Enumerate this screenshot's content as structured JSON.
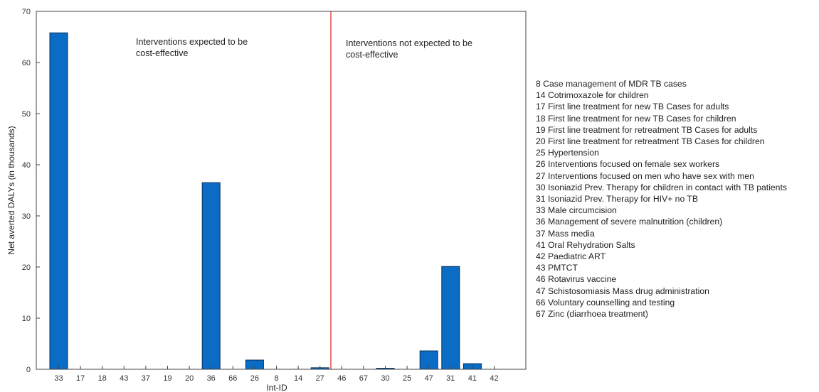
{
  "chart_data": {
    "type": "bar",
    "xlabel": "Int-ID",
    "ylabel": "Net averted DALYs (in thousands)",
    "ylim": [
      0,
      70
    ],
    "yticks": [
      0,
      10,
      20,
      30,
      40,
      50,
      60,
      70
    ],
    "grid": false,
    "categories": [
      "33",
      "17",
      "18",
      "43",
      "37",
      "19",
      "20",
      "36",
      "66",
      "26",
      "8",
      "14",
      "27",
      "46",
      "67",
      "30",
      "25",
      "47",
      "31",
      "41",
      "42"
    ],
    "values": [
      65.8,
      0,
      0,
      0,
      0,
      0,
      0,
      36.5,
      0,
      1.8,
      0,
      0,
      0.3,
      0,
      0,
      0.2,
      0,
      3.6,
      20.1,
      1.1,
      0
    ],
    "bar_color": "#0a6cc4",
    "divider": {
      "after_category": "27",
      "color": "#e0201b"
    },
    "annotations": [
      {
        "lines": [
          "Interventions expected to be",
          "cost-effective"
        ]
      },
      {
        "lines": [
          "Interventions not expected to be",
          "cost-effective"
        ]
      }
    ]
  },
  "legend": [
    "8 Case management  of MDR  TB cases",
    "14 Cotrimoxazole for children",
    "17 First line treatment  for new TB Cases for adults",
    "18 First line treatment  for new TB Cases for children",
    "19 First line treatment  for retreatment TB  Cases for adults",
    "20 First line treatment  for retreatment TB  Cases for children",
    "25 Hypertension",
    "26 Interventions focused on female sex workers",
    "27 Interventions focused on men  who have sex with men",
    "30 Isoniazid Prev. Therapy for children in contact with TB patients",
    "31 Isoniazid Prev. Therapy for HIV+ no TB",
    "33 Male circumcision",
    "36 Management  of severe malnutrition (children)",
    "37 Mass media",
    "41 Oral Rehydration Salts",
    "42 Paediatric ART",
    "43 PMTCT",
    "46 Rotavirus vaccine",
    "47 Schistosomiasis Mass drug administration",
    "66 Voluntary counselling and testing",
    "67 Zinc (diarrhoea treatment)"
  ]
}
